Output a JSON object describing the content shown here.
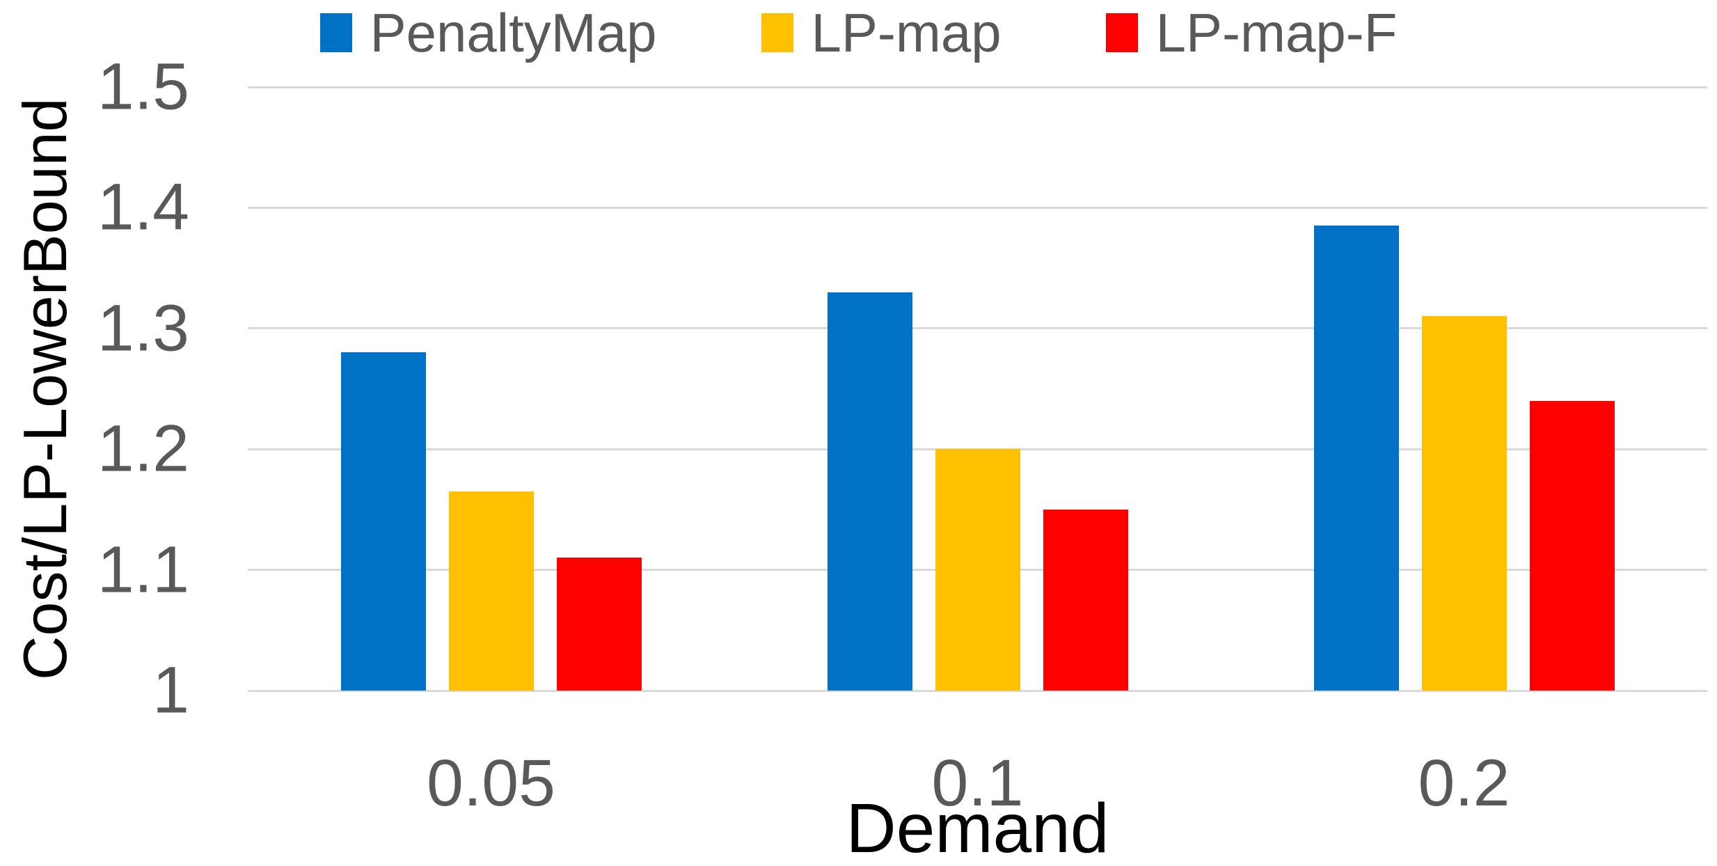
{
  "chart_data": {
    "type": "bar",
    "title": "",
    "categories": [
      "0.05",
      "0.1",
      "0.2"
    ],
    "series": [
      {
        "name": "PenaltyMap",
        "color": "#0072C6",
        "values": [
          1.28,
          1.33,
          1.385
        ]
      },
      {
        "name": "LP-map",
        "color": "#FFC000",
        "values": [
          1.165,
          1.2,
          1.31
        ]
      },
      {
        "name": "LP-map-F",
        "color": "#FF0000",
        "values": [
          1.11,
          1.15,
          1.24
        ]
      }
    ],
    "xlabel": "Demand",
    "ylabel": "Cost/LP-LowerBound",
    "ylim": [
      1,
      1.5
    ],
    "yticks": [
      "1",
      "1.1",
      "1.2",
      "1.3",
      "1.4",
      "1.5"
    ],
    "grid": true,
    "legend_position": "top",
    "colors": {
      "gridline": "#d9d9d9",
      "tick_text": "#595959",
      "axis_title_text": "#000000",
      "background": "#ffffff"
    }
  }
}
